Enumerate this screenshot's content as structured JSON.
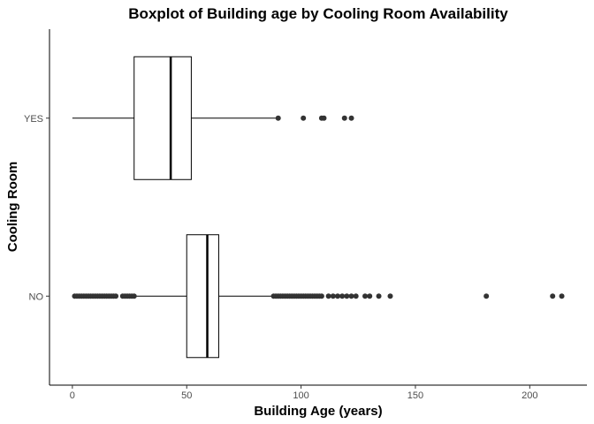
{
  "chart_data": {
    "type": "boxplot",
    "orientation": "horizontal",
    "title": "Boxplot of Building age by Cooling Room Availability",
    "xlabel": "Building Age (years)",
    "ylabel": "Cooling Room",
    "xlim": [
      -10,
      225
    ],
    "xticks": [
      0,
      50,
      100,
      150,
      200
    ],
    "xtick_labels": [
      "0",
      "50",
      "100",
      "150",
      "200"
    ],
    "categories": [
      "YES",
      "NO"
    ],
    "grid": false,
    "boxes": [
      {
        "name": "YES",
        "whisker_low": 0,
        "q1": 27,
        "median": 43,
        "q3": 52,
        "whisker_high": 90,
        "outliers": [
          90,
          101,
          109,
          110,
          119,
          122
        ]
      },
      {
        "name": "NO",
        "whisker_low": 28,
        "q1": 50,
        "median": 59,
        "q3": 64,
        "whisker_high": 87,
        "outliers": [
          1,
          2,
          3,
          4,
          5,
          6,
          7,
          8,
          9,
          10,
          11,
          12,
          13,
          14,
          15,
          16,
          17,
          18,
          19,
          22,
          23,
          24,
          25,
          26,
          27,
          88,
          89,
          90,
          91,
          92,
          93,
          94,
          95,
          96,
          97,
          98,
          99,
          100,
          101,
          102,
          103,
          104,
          105,
          106,
          107,
          108,
          109,
          112,
          114,
          116,
          118,
          120,
          122,
          124,
          128,
          130,
          134,
          139,
          181,
          210,
          214
        ]
      }
    ]
  }
}
